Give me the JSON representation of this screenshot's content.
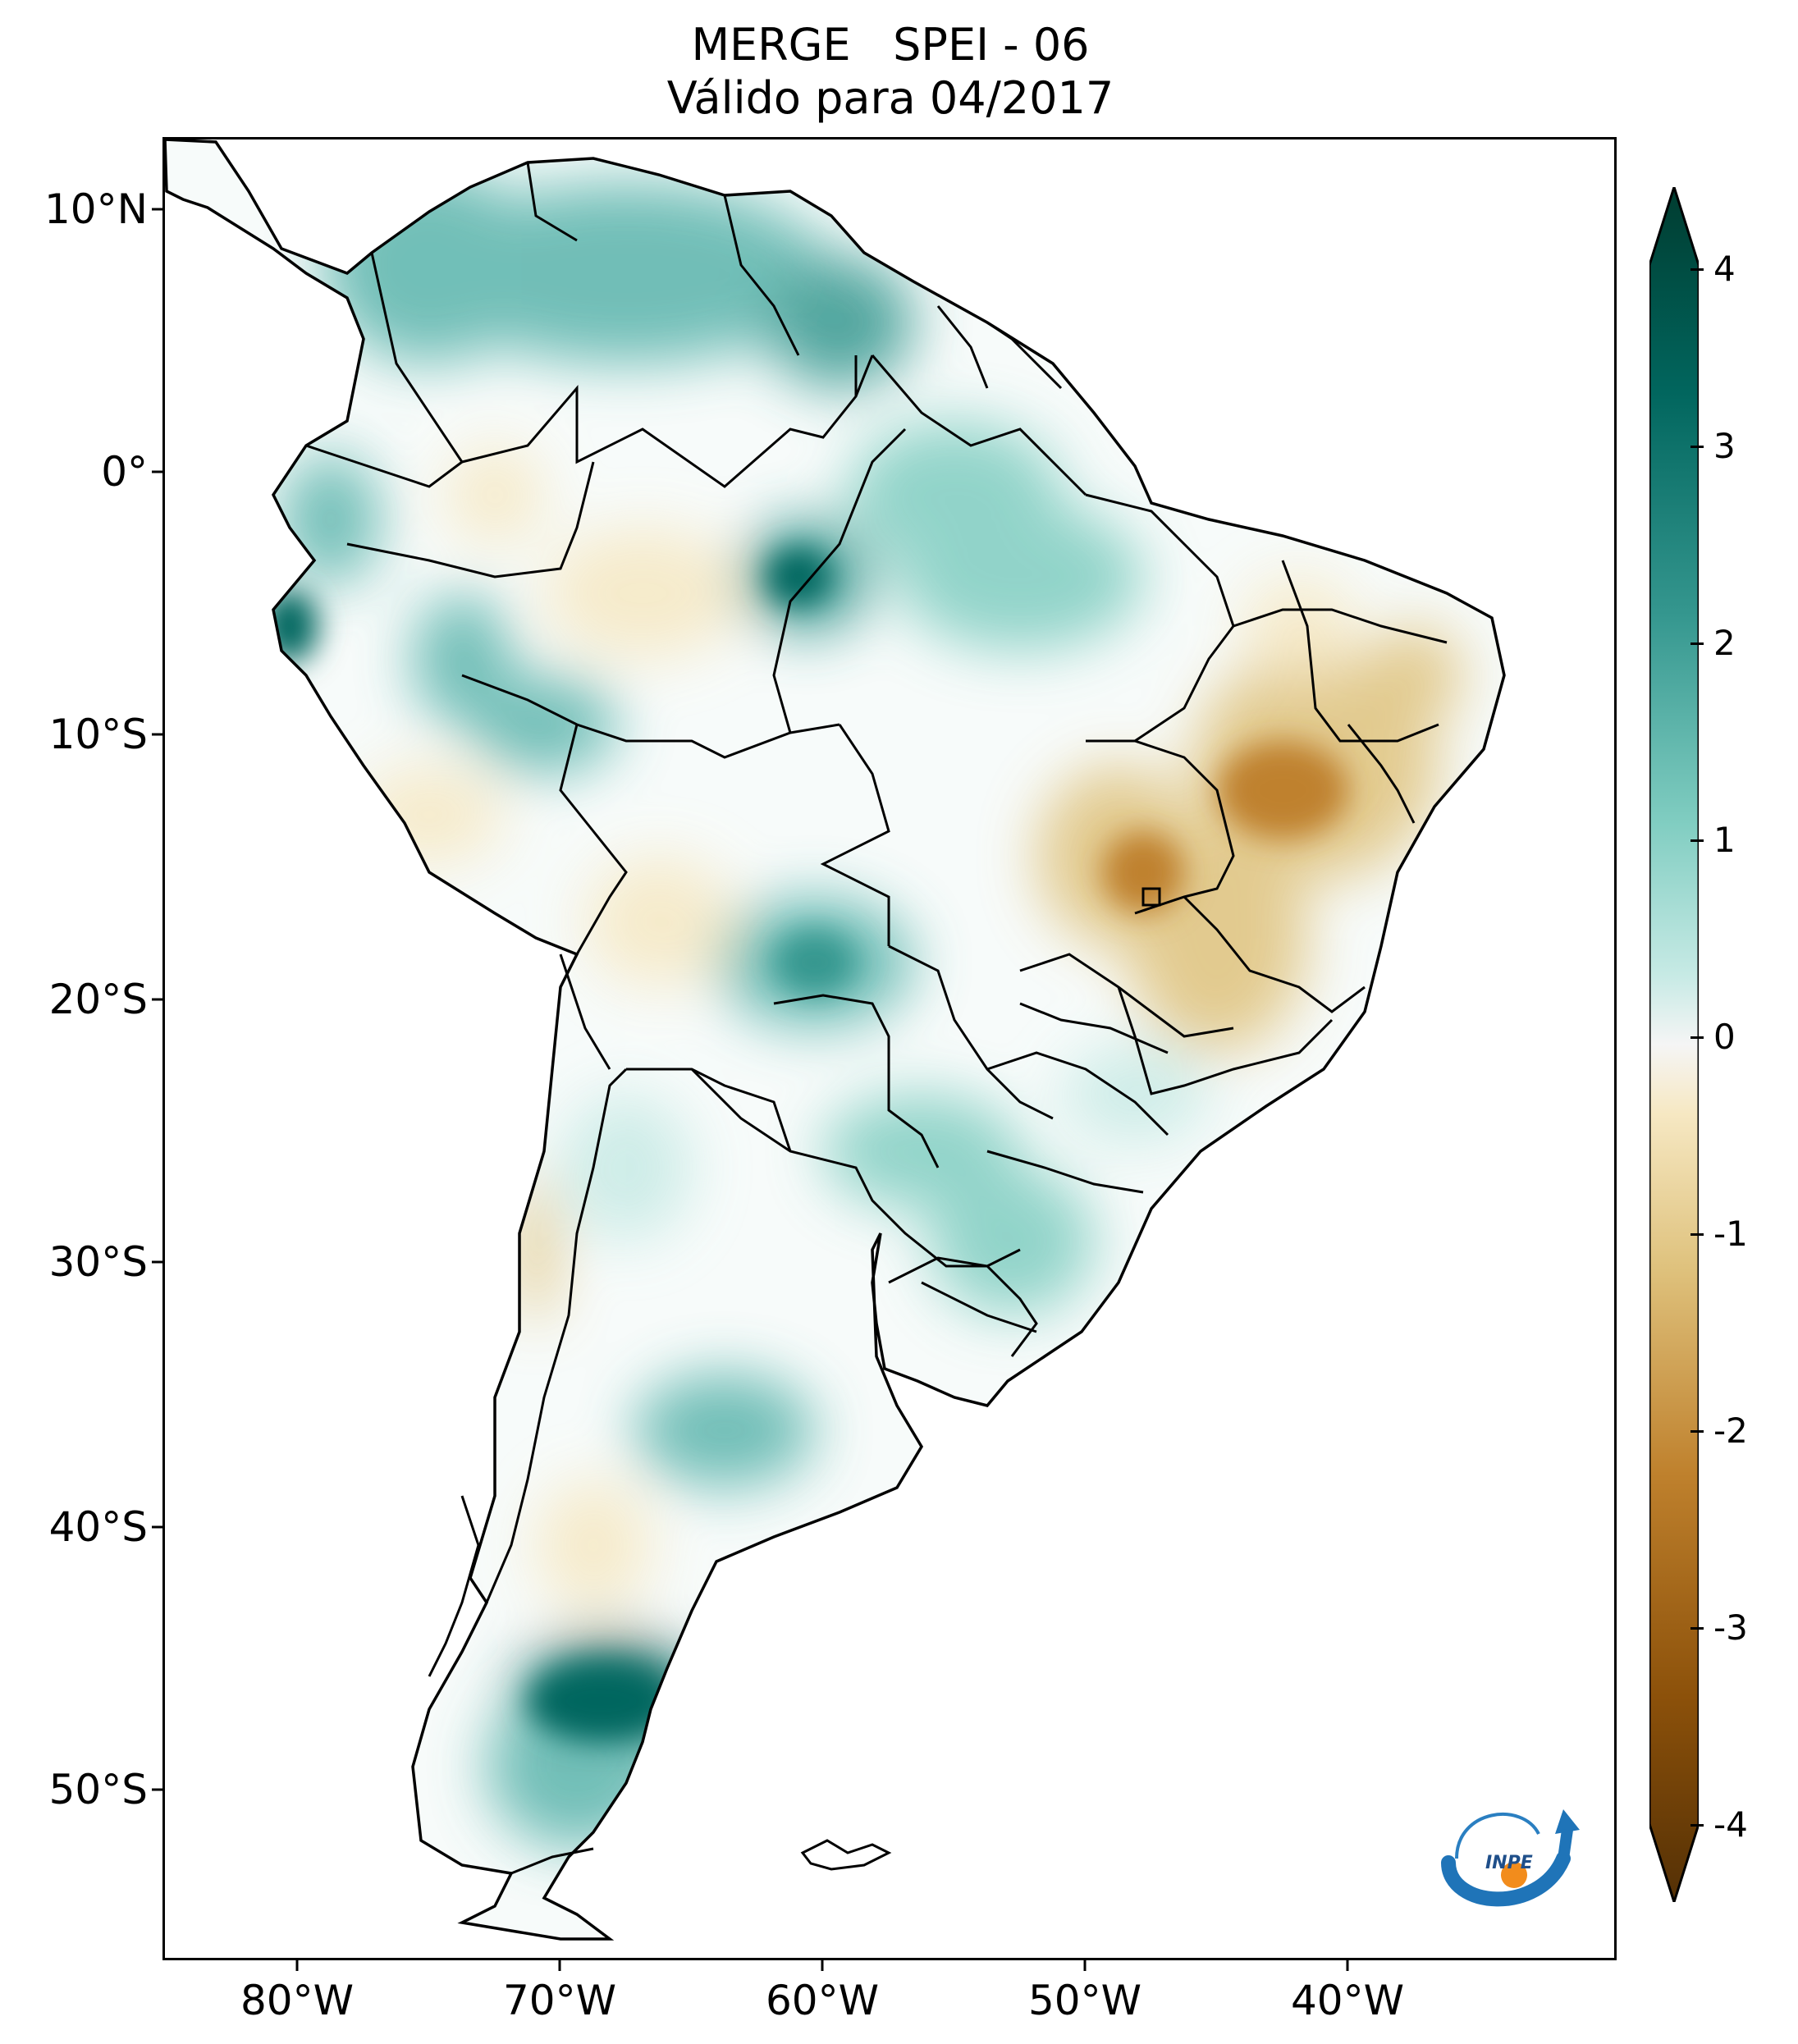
{
  "title": {
    "line1": "MERGE   SPEI - 06",
    "line2": "Válido para 04/2017"
  },
  "map": {
    "latitude_labels": [
      "10°N",
      "0°",
      "10°S",
      "20°S",
      "30°S",
      "40°S",
      "50°S"
    ],
    "longitude_labels": [
      "80°W",
      "70°W",
      "60°W",
      "50°W",
      "40°W"
    ],
    "color_wet": "#01665e",
    "color_dry": "#8c510a"
  },
  "colorbar": {
    "ticks": [
      "4",
      "3",
      "2",
      "1",
      "0",
      "-1",
      "-2",
      "-3",
      "-4"
    ],
    "colormap": "BrBG",
    "extend": "both"
  },
  "logo": {
    "text": "INPE"
  }
}
